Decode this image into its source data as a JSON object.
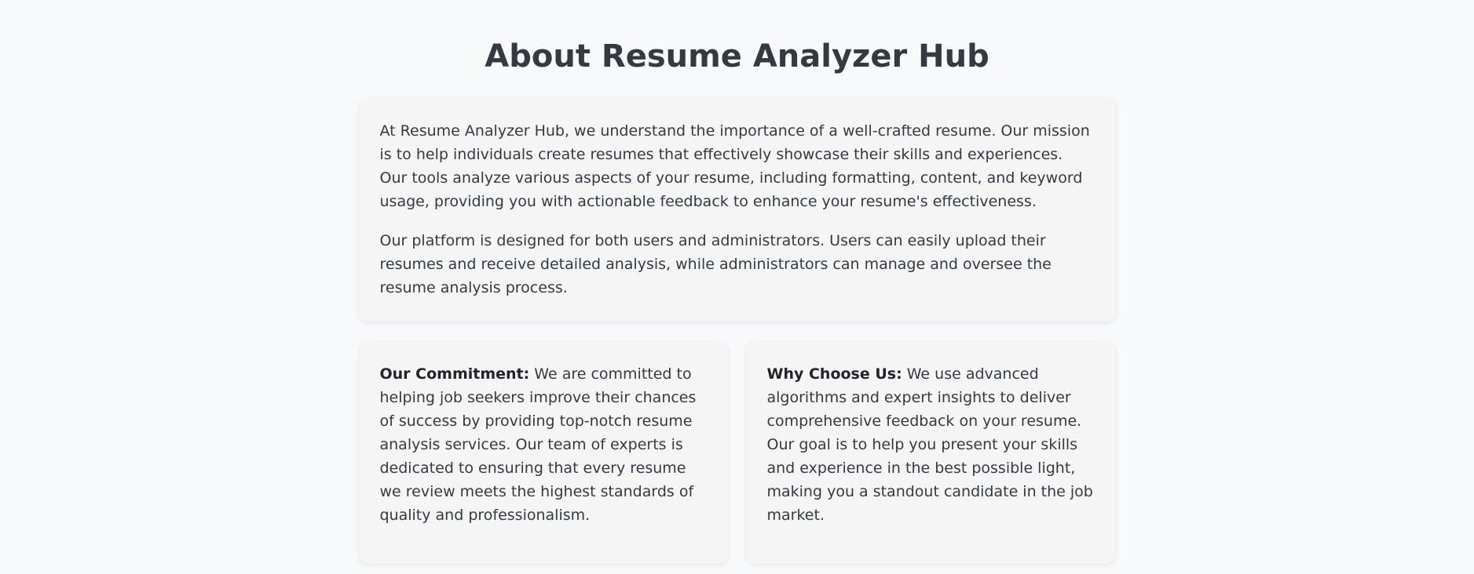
{
  "page": {
    "title": "About Resume Analyzer Hub"
  },
  "intro": {
    "paragraphs": [
      "At Resume Analyzer Hub, we understand the importance of a well-crafted resume. Our mission is to help individuals create resumes that effectively showcase their skills and experiences. Our tools analyze various aspects of your resume, including formatting, content, and keyword usage, providing you with actionable feedback to enhance your resume's effectiveness.",
      "Our platform is designed for both users and administrators. Users can easily upload their resumes and receive detailed analysis, while administrators can manage and oversee the resume analysis process."
    ]
  },
  "commitment": {
    "label": "Our Commitment:",
    "text": " We are committed to helping job seekers improve their chances of success by providing top-notch resume analysis services. Our team of experts is dedicated to ensuring that every resume we review meets the highest standards of quality and professionalism."
  },
  "why_choose": {
    "label": "Why Choose Us:",
    "text": " We use advanced algorithms and expert insights to deliver comprehensive feedback on your resume. Our goal is to help you present your skills and experience in the best possible light, making you a standout candidate in the job market."
  },
  "colors": {
    "page_background": "#f8f9fa",
    "card_background": "#f5f5f5",
    "text": "#343a40"
  }
}
